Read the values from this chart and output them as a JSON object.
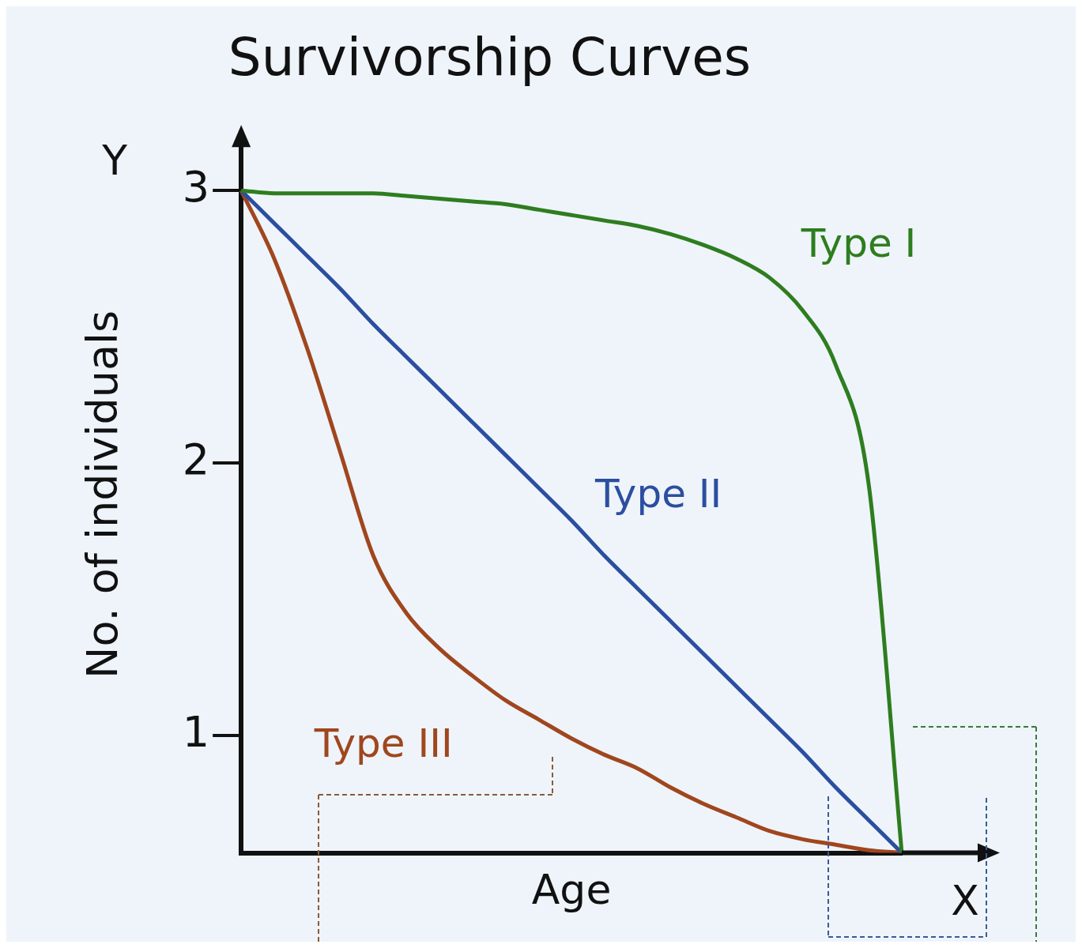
{
  "chart_data": {
    "type": "line",
    "title": "Survivorship Curves",
    "xlabel": "Age",
    "ylabel": "No. of individuals",
    "annotations": [
      "X",
      "Y"
    ],
    "categories": [
      null,
      null,
      null,
      null,
      null,
      null,
      null,
      null,
      null,
      null,
      null,
      null,
      null,
      null,
      null,
      null,
      null,
      null,
      null,
      null,
      null
    ],
    "series": [
      {
        "name": "Type I",
        "color": "#2e7d1f",
        "values": [
          3.0,
          2.99,
          2.99,
          2.99,
          2.99,
          2.98,
          2.97,
          2.96,
          2.95,
          2.93,
          2.91,
          2.89,
          2.87,
          2.84,
          2.8,
          2.75,
          2.68,
          2.56,
          2.36,
          1.92,
          0.57
        ]
      },
      {
        "name": "Type II",
        "color": "#2b4ea0",
        "values": [
          3.0,
          2.88,
          2.76,
          2.64,
          2.51,
          2.39,
          2.27,
          2.15,
          2.03,
          1.91,
          1.79,
          1.66,
          1.54,
          1.42,
          1.3,
          1.18,
          1.06,
          0.94,
          0.81,
          0.69,
          0.57
        ]
      },
      {
        "name": "Type III",
        "color": "#a0461e",
        "values": [
          3.0,
          2.75,
          2.42,
          2.04,
          1.66,
          1.45,
          1.32,
          1.22,
          1.13,
          1.06,
          0.99,
          0.93,
          0.88,
          0.81,
          0.75,
          0.7,
          0.65,
          0.62,
          0.6,
          0.58,
          0.57
        ]
      }
    ],
    "ylim": [
      0.57,
      3.2
    ],
    "yticks": [
      1,
      2,
      3
    ],
    "tick_labels": "y",
    "grid": false,
    "legend": false,
    "line_style": "solid",
    "marker": "none"
  }
}
